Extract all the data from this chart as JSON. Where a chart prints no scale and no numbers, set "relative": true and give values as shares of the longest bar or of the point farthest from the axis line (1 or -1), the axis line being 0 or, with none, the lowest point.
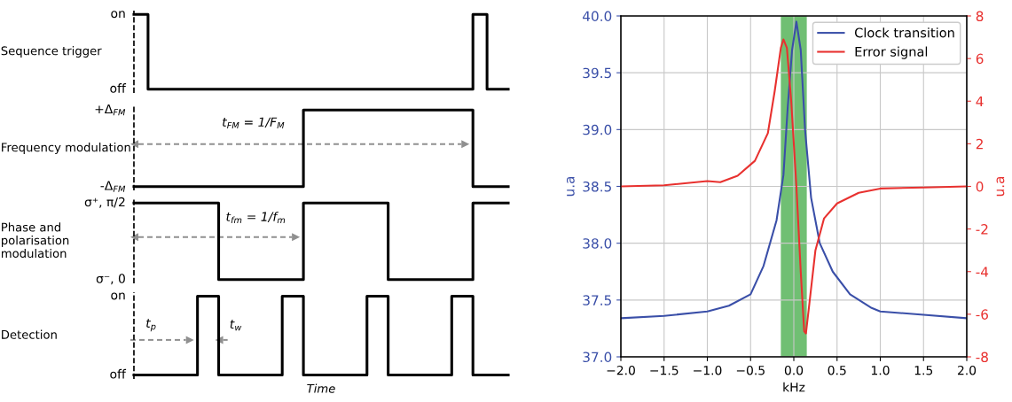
{
  "chart_data": [
    {
      "type": "step",
      "categories": [
        null,
        null,
        null,
        null,
        null,
        null,
        null,
        null,
        null,
        null,
        null,
        null,
        null,
        null,
        null,
        null,
        null,
        null,
        null,
        null,
        null,
        null,
        null,
        null,
        null,
        null,
        null,
        null,
        null,
        null,
        null,
        null,
        null,
        null,
        null,
        null,
        null,
        null,
        null,
        null,
        null,
        null,
        null,
        null,
        null,
        null,
        null,
        null,
        null,
        null,
        null,
        null,
        null,
        null
      ],
      "ylabel": "Sequence trigger",
      "relative": true,
      "annotations": [
        "on",
        "off"
      ],
      "series": [
        {
          "color": "#000000",
          "values": [
            1,
            1,
            0,
            0,
            0,
            0,
            0,
            0,
            0,
            0,
            0,
            0,
            0,
            0,
            0,
            0,
            0,
            0,
            0,
            0,
            0,
            0,
            0,
            0,
            0,
            0,
            0,
            0,
            0,
            0,
            0,
            0,
            0,
            0,
            0,
            0,
            0,
            0,
            0,
            0,
            0,
            0,
            0,
            0,
            0,
            0,
            0,
            0,
            1,
            1,
            0,
            0,
            0,
            0
          ]
        }
      ]
    },
    {
      "type": "step",
      "categories": [
        null,
        null,
        null,
        null,
        null,
        null,
        null,
        null,
        null,
        null,
        null,
        null,
        null,
        null,
        null,
        null,
        null,
        null,
        null,
        null,
        null,
        null,
        null,
        null,
        null,
        null,
        null,
        null,
        null,
        null,
        null,
        null,
        null,
        null,
        null,
        null,
        null,
        null,
        null,
        null,
        null,
        null,
        null,
        null,
        null,
        null,
        null,
        null,
        null,
        null,
        null,
        null,
        null,
        null
      ],
      "ylabel": "Frequency modulation",
      "relative": true,
      "annotations": [
        "+Δ$_{FM}$",
        "-Δ$_{FM}$",
        "t$_{FM}$ = 1/F$_{M}$"
      ],
      "series": [
        {
          "color": "#000000",
          "values": [
            0,
            0,
            0,
            0,
            0,
            0,
            0,
            0,
            0,
            0,
            0,
            0,
            0,
            0,
            0,
            0,
            0,
            0,
            0,
            0,
            0,
            0,
            0,
            0,
            1,
            1,
            1,
            1,
            1,
            1,
            1,
            1,
            1,
            1,
            1,
            1,
            1,
            1,
            1,
            1,
            1,
            1,
            1,
            1,
            1,
            1,
            1,
            1,
            0,
            0,
            0,
            0,
            0,
            0
          ]
        }
      ]
    },
    {
      "type": "step",
      "categories": [
        null,
        null,
        null,
        null,
        null,
        null,
        null,
        null,
        null,
        null,
        null,
        null,
        null,
        null,
        null,
        null,
        null,
        null,
        null,
        null,
        null,
        null,
        null,
        null,
        null,
        null,
        null,
        null,
        null,
        null,
        null,
        null,
        null,
        null,
        null,
        null,
        null,
        null,
        null,
        null,
        null,
        null,
        null,
        null,
        null,
        null,
        null,
        null,
        null,
        null,
        null,
        null,
        null,
        null
      ],
      "ylabel": "Phase and\npolarisation\nmodulation",
      "relative": true,
      "annotations": [
        "σ⁺, π/2",
        "σ⁻, 0",
        "t$_{fm}$ = 1/f$_{m}$"
      ],
      "series": [
        {
          "color": "#000000",
          "values": [
            1,
            1,
            1,
            1,
            1,
            1,
            1,
            1,
            1,
            1,
            1,
            1,
            0,
            0,
            0,
            0,
            0,
            0,
            0,
            0,
            0,
            0,
            0,
            0,
            1,
            1,
            1,
            1,
            1,
            1,
            1,
            1,
            1,
            1,
            1,
            1,
            0,
            0,
            0,
            0,
            0,
            0,
            0,
            0,
            0,
            0,
            0,
            0,
            1,
            1,
            1,
            1,
            1,
            1
          ]
        }
      ]
    },
    {
      "type": "step",
      "categories": [
        null,
        null,
        null,
        null,
        null,
        null,
        null,
        null,
        null,
        null,
        null,
        null,
        null,
        null,
        null,
        null,
        null,
        null,
        null,
        null,
        null,
        null,
        null,
        null,
        null,
        null,
        null,
        null,
        null,
        null,
        null,
        null,
        null,
        null,
        null,
        null,
        null,
        null,
        null,
        null,
        null,
        null,
        null,
        null,
        null,
        null,
        null,
        null,
        null,
        null,
        null,
        null,
        null,
        null
      ],
      "ylabel": "Detection",
      "xlabel": "Time",
      "relative": true,
      "annotations": [
        "on",
        "off",
        "t$_{p}$",
        "t$_{w}$"
      ],
      "series": [
        {
          "color": "#000000",
          "values": [
            0,
            0,
            0,
            0,
            0,
            0,
            0,
            0,
            0,
            1,
            1,
            1,
            0,
            0,
            0,
            0,
            0,
            0,
            0,
            0,
            0,
            1,
            1,
            1,
            0,
            0,
            0,
            0,
            0,
            0,
            0,
            0,
            0,
            1,
            1,
            1,
            0,
            0,
            0,
            0,
            0,
            0,
            0,
            0,
            0,
            1,
            1,
            1,
            0,
            0,
            0,
            0,
            0,
            0
          ]
        }
      ]
    },
    {
      "type": "line",
      "xlabel": "kHz",
      "ylabel": "u.a",
      "y2label": "u.a",
      "xlim": [
        -2,
        2
      ],
      "ylim": [
        37,
        40
      ],
      "y2lim": [
        -8,
        8
      ],
      "xticks": [
        {
          "value": -2,
          "label": "−2.0"
        },
        {
          "value": -1.5,
          "label": "−1.5"
        },
        {
          "value": -1,
          "label": "−1.0"
        },
        {
          "value": -0.5,
          "label": "−0.5"
        },
        {
          "value": 0,
          "label": "0.0"
        },
        {
          "value": 0.5,
          "label": "0.5"
        },
        {
          "value": 1,
          "label": "1.0"
        },
        {
          "value": 1.5,
          "label": "1.5"
        },
        {
          "value": 2,
          "label": "2.0"
        }
      ],
      "yticks": [
        {
          "value": 37,
          "label": "37.0"
        },
        {
          "value": 37.5,
          "label": "37.5"
        },
        {
          "value": 38,
          "label": "38.0"
        },
        {
          "value": 38.5,
          "label": "38.5"
        },
        {
          "value": 39,
          "label": "39.0"
        },
        {
          "value": 39.5,
          "label": "39.5"
        },
        {
          "value": 40,
          "label": "40.0"
        }
      ],
      "y2ticks": [
        -8,
        -6,
        -4,
        -2,
        0,
        2,
        4,
        6,
        8
      ],
      "grid": true,
      "legend": "top right",
      "bands": [
        {
          "axis": "x",
          "from": -0.15,
          "to": 0.15,
          "color": "#4caf50"
        }
      ],
      "series": [
        {
          "name": "Clock transition",
          "color": "#3a4fa8",
          "x": [
            -2,
            -1.5,
            -1,
            -0.75,
            -0.5,
            -0.35,
            -0.2,
            -0.12,
            -0.07,
            -0.02,
            0.03,
            0.08,
            0.13,
            0.2,
            0.3,
            0.45,
            0.65,
            0.9,
            1,
            1.5,
            2
          ],
          "values": [
            37.34,
            37.36,
            37.4,
            37.45,
            37.55,
            37.8,
            38.2,
            38.6,
            39.2,
            39.7,
            39.95,
            39.7,
            39.0,
            38.4,
            38.0,
            37.75,
            37.55,
            37.43,
            37.4,
            37.37,
            37.34
          ]
        },
        {
          "name": "Error signal",
          "color": "#e8312f",
          "axis": "y2",
          "x": [
            -2,
            -1.5,
            -1,
            -0.85,
            -0.65,
            -0.45,
            -0.3,
            -0.22,
            -0.15,
            -0.12,
            -0.08,
            -0.03,
            0.03,
            0.08,
            0.12,
            0.14,
            0.18,
            0.25,
            0.35,
            0.5,
            0.75,
            1,
            1.5,
            2
          ],
          "values": [
            0,
            0.05,
            0.25,
            0.2,
            0.5,
            1.2,
            2.5,
            4.5,
            6.5,
            6.9,
            6.5,
            4,
            0,
            -4,
            -6.8,
            -6.9,
            -5.5,
            -3,
            -1.5,
            -0.8,
            -0.3,
            -0.1,
            -0.05,
            0
          ]
        }
      ]
    }
  ]
}
